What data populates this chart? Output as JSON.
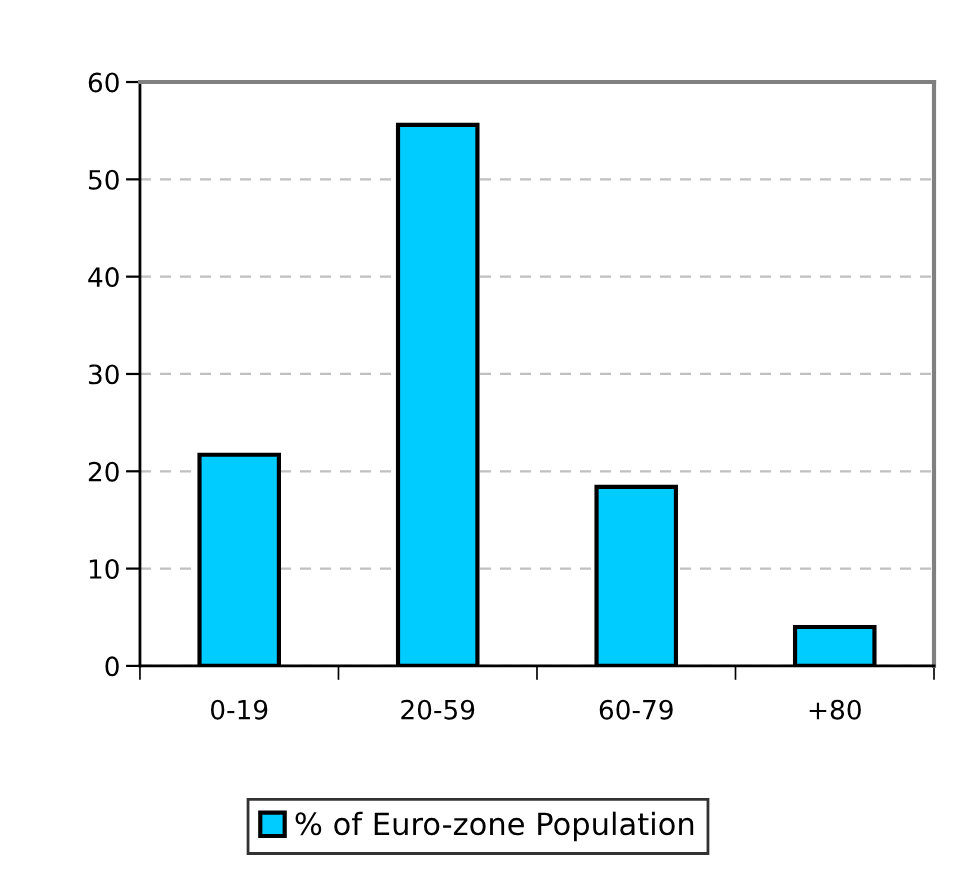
{
  "chart_data": {
    "type": "bar",
    "categories": [
      "0-19",
      "20-59",
      "60-79",
      "+80"
    ],
    "series": [
      {
        "name": "% of Euro-zone Population",
        "color": "#00ccff",
        "values": [
          21.7,
          55.6,
          18.4,
          4.0
        ]
      }
    ],
    "ylim": [
      0,
      60
    ],
    "yticks": [
      0,
      10,
      20,
      30,
      40,
      50,
      60
    ],
    "grid": "y",
    "legend": "bottom"
  }
}
